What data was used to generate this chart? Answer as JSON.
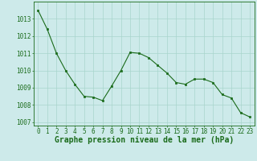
{
  "x": [
    0,
    1,
    2,
    3,
    4,
    5,
    6,
    7,
    8,
    9,
    10,
    11,
    12,
    13,
    14,
    15,
    16,
    17,
    18,
    19,
    20,
    21,
    22,
    23
  ],
  "y": [
    1013.5,
    1012.4,
    1011.0,
    1010.0,
    1009.2,
    1008.5,
    1008.45,
    1008.25,
    1009.1,
    1010.0,
    1011.05,
    1011.0,
    1010.75,
    1010.3,
    1009.85,
    1009.3,
    1009.2,
    1009.5,
    1009.5,
    1009.3,
    1008.6,
    1008.4,
    1007.55,
    1007.3
  ],
  "ylim": [
    1006.8,
    1014.0
  ],
  "yticks": [
    1007,
    1008,
    1009,
    1010,
    1011,
    1012,
    1013
  ],
  "xticks": [
    0,
    1,
    2,
    3,
    4,
    5,
    6,
    7,
    8,
    9,
    10,
    11,
    12,
    13,
    14,
    15,
    16,
    17,
    18,
    19,
    20,
    21,
    22,
    23
  ],
  "xlabel": "Graphe pression niveau de la mer (hPa)",
  "line_color": "#1a6b1a",
  "marker_color": "#1a6b1a",
  "bg_color": "#cdeaea",
  "grid_color": "#a8d5cc",
  "tick_label_color": "#1a6b1a",
  "xlabel_color": "#1a6b1a",
  "xlabel_fontsize": 7.0,
  "tick_fontsize": 5.5,
  "figwidth": 3.2,
  "figheight": 2.0,
  "dpi": 100
}
